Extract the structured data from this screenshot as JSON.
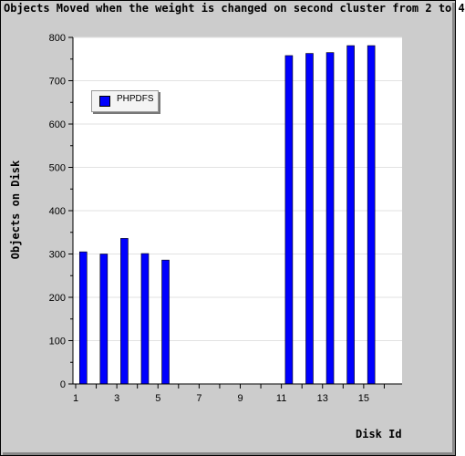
{
  "chart_data": {
    "type": "bar",
    "title": "Objects Moved when the weight is changed on second cluster from 2 to 4",
    "xlabel": "Disk Id",
    "ylabel": "Objects on Disk",
    "categories": [
      1,
      2,
      3,
      4,
      5,
      6,
      7,
      8,
      9,
      10,
      11,
      12,
      13,
      14,
      15,
      16
    ],
    "x_tick_labels": [
      "1",
      "3",
      "5",
      "7",
      "9",
      "11",
      "13",
      "15"
    ],
    "y_tick_labels": [
      "0",
      "100",
      "200",
      "300",
      "400",
      "500",
      "600",
      "700",
      "800"
    ],
    "ylim": [
      0,
      800
    ],
    "grid": "horizontal",
    "legend_position": "top-left",
    "series": [
      {
        "name": "PHPDFS",
        "color": "#0000ff",
        "values": [
          305,
          300,
          336,
          301,
          286,
          0,
          0,
          0,
          0,
          0,
          758,
          763,
          765,
          781,
          781,
          0
        ]
      }
    ]
  }
}
